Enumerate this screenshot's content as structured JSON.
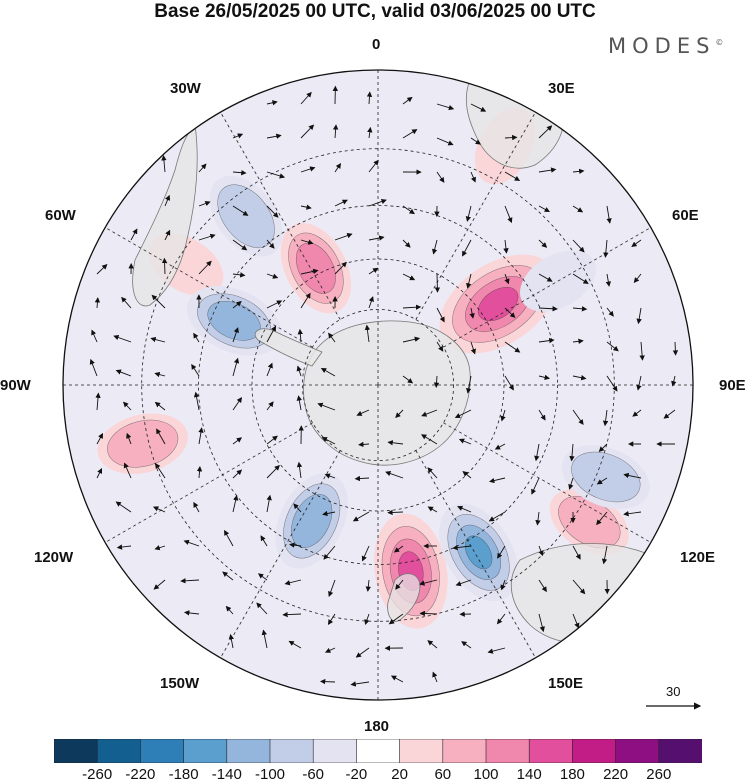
{
  "header": {
    "title": "Base 26/05/2025 00 UTC, valid 03/06/2025 00 UTC",
    "brand": "MODES",
    "brand_mark": "©"
  },
  "map": {
    "projection": "south polar stereographic",
    "longitude_labels": {
      "top": "0",
      "bottom": "180",
      "left": "90W",
      "right": "90E",
      "w30": "30W",
      "w60": "60W",
      "w120": "120W",
      "w150": "150W",
      "e30": "30E",
      "e60": "60E",
      "e120": "120E",
      "e150": "150E"
    },
    "wind_vector_reference": "30",
    "anomaly_blobs": [
      {
        "sign": "positive",
        "level": 260,
        "angle_deg": 56,
        "r_frac": 0.46
      },
      {
        "sign": "positive",
        "level": 200,
        "angle_deg": 170,
        "r_frac": 0.6
      },
      {
        "sign": "positive",
        "level": 120,
        "angle_deg": 332,
        "r_frac": 0.42
      },
      {
        "sign": "positive",
        "level": 100,
        "angle_deg": 256,
        "r_frac": 0.77
      },
      {
        "sign": "positive",
        "level": 80,
        "angle_deg": 123,
        "r_frac": 0.8
      },
      {
        "sign": "positive",
        "level": 60,
        "angle_deg": 28,
        "r_frac": 0.86
      },
      {
        "sign": "positive",
        "level": 60,
        "angle_deg": 302,
        "r_frac": 0.72
      },
      {
        "sign": "negative",
        "level": -160,
        "angle_deg": 149,
        "r_frac": 0.62
      },
      {
        "sign": "negative",
        "level": -140,
        "angle_deg": 206,
        "r_frac": 0.48
      },
      {
        "sign": "negative",
        "level": -130,
        "angle_deg": 294,
        "r_frac": 0.5
      },
      {
        "sign": "negative",
        "level": -100,
        "angle_deg": 322,
        "r_frac": 0.68
      },
      {
        "sign": "negative",
        "level": -100,
        "angle_deg": 112,
        "r_frac": 0.78
      },
      {
        "sign": "negative",
        "level": -60,
        "angle_deg": 60,
        "r_frac": 0.66
      }
    ]
  },
  "colorbar": {
    "colors": [
      "#0d3a5c",
      "#135f8f",
      "#2e7fb8",
      "#5a9fcd",
      "#94b6dc",
      "#c2cde8",
      "#e4e3f1",
      "#ffffff",
      "#fad6d9",
      "#f6b0c0",
      "#f087ad",
      "#e24f9c",
      "#c21c86",
      "#8e0f81",
      "#55106f"
    ],
    "ticks": [
      "-260",
      "-220",
      "-180",
      "-140",
      "-100",
      "-60",
      "-20",
      "20",
      "60",
      "100",
      "140",
      "180",
      "220",
      "260"
    ]
  }
}
